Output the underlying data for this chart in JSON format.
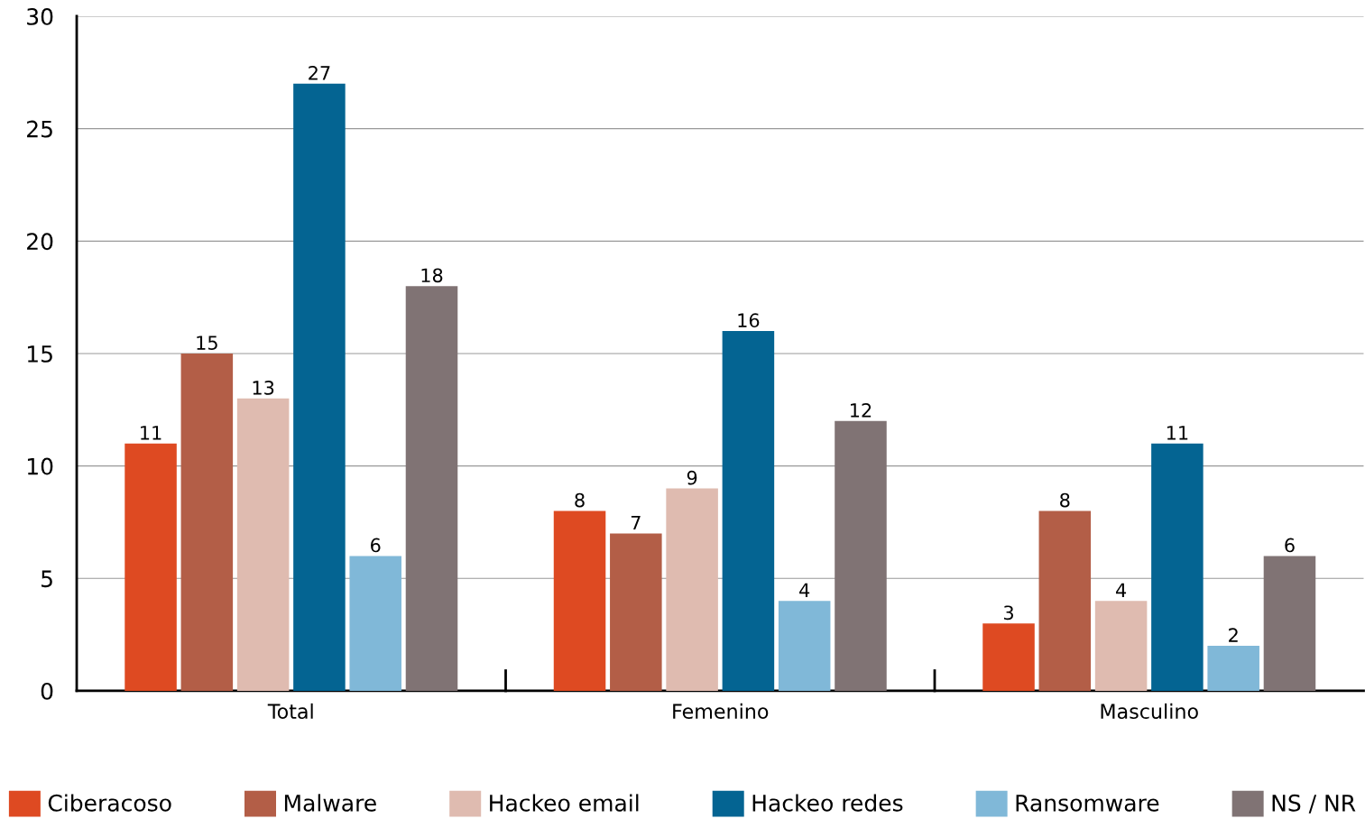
{
  "chart_data": {
    "type": "bar",
    "categories": [
      "Total",
      "Femenino",
      "Masculino"
    ],
    "series": [
      {
        "name": "Ciberacoso",
        "color": "#de4a22",
        "values": [
          11,
          8,
          3
        ]
      },
      {
        "name": "Malware",
        "color": "#b35e47",
        "values": [
          15,
          7,
          8
        ]
      },
      {
        "name": "Hackeo email",
        "color": "#dfbbb0",
        "values": [
          13,
          9,
          4
        ]
      },
      {
        "name": "Hackeo redes",
        "color": "#046492",
        "values": [
          27,
          16,
          11
        ]
      },
      {
        "name": "Ransomware",
        "color": "#80b8d8",
        "values": [
          6,
          4,
          2
        ]
      },
      {
        "name": "NS / NR",
        "color": "#807374",
        "values": [
          18,
          12,
          6
        ]
      }
    ],
    "ylim": [
      0,
      30
    ],
    "yticks": [
      0,
      5,
      10,
      15,
      20,
      25,
      30
    ],
    "grid": "y",
    "legend": "bottom",
    "data_labels": true
  }
}
